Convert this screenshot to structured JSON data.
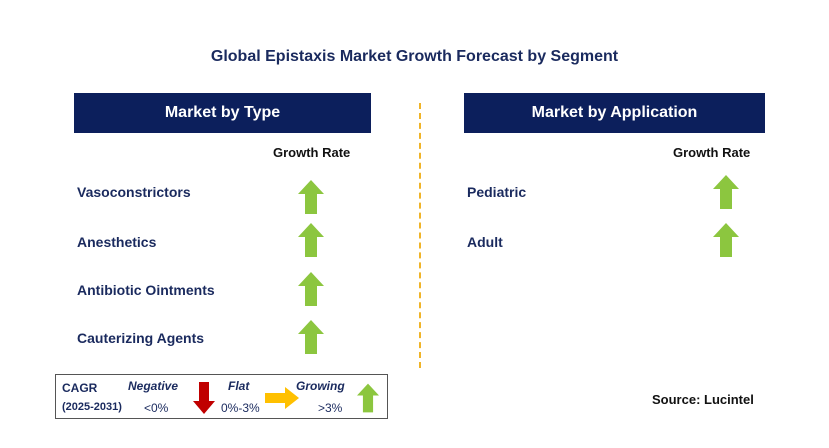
{
  "title": "Global Epistaxis Market Growth Forecast by Segment",
  "left_panel": {
    "header": "Market by Type",
    "growth_rate_label": "Growth Rate",
    "rows": [
      {
        "label": "Vasoconstrictors",
        "trend": "growing"
      },
      {
        "label": "Anesthetics",
        "trend": "growing"
      },
      {
        "label": "Antibiotic Ointments",
        "trend": "growing"
      },
      {
        "label": "Cauterizing Agents",
        "trend": "growing"
      }
    ]
  },
  "right_panel": {
    "header": "Market by Application",
    "growth_rate_label": "Growth Rate",
    "rows": [
      {
        "label": "Pediatric",
        "trend": "growing"
      },
      {
        "label": "Adult",
        "trend": "growing"
      }
    ]
  },
  "legend": {
    "cagr_label": "CAGR",
    "period": "(2025-2031)",
    "negative": {
      "label": "Negative",
      "range": "<0%",
      "icon": "red-down-arrow-icon"
    },
    "flat": {
      "label": "Flat",
      "range": "0%-3%",
      "icon": "orange-right-arrow-icon"
    },
    "growing": {
      "label": "Growing",
      "range": ">3%",
      "icon": "green-up-arrow-icon"
    }
  },
  "source": "Source: Lucintel",
  "colors": {
    "header_bg": "#0c1f5c",
    "growing": "#8cc63f",
    "negative": "#c00000",
    "flat": "#ffc000",
    "divider": "#f0b428"
  }
}
